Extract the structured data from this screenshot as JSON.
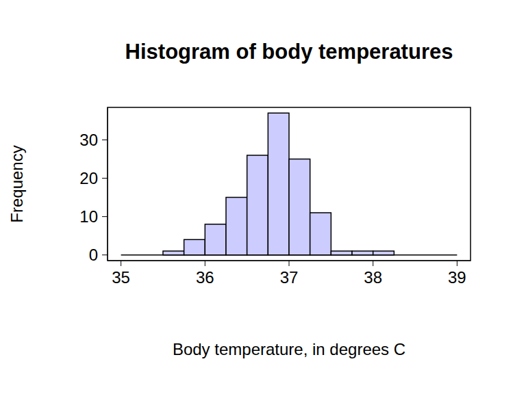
{
  "chart_data": {
    "type": "histogram",
    "title": "Histogram of body temperatures",
    "x_label": "Body temperature, in degrees C",
    "y_label": "Frequency",
    "bins": [
      35,
      35.25,
      35.5,
      35.75,
      36,
      36.25,
      36.5,
      36.75,
      37,
      37.25,
      37.5,
      37.75,
      38,
      38.25,
      38.5,
      38.75,
      39
    ],
    "values": [
      0,
      0,
      1,
      4,
      8,
      15,
      26,
      37,
      25,
      11,
      1,
      1,
      1,
      0,
      0,
      0
    ],
    "color": "#ccccff",
    "xlim": [
      34.84,
      39.16
    ],
    "xticks": [
      35,
      36,
      37,
      38,
      39
    ],
    "ylim": [
      -1.48,
      38.48
    ],
    "yticks": [
      0,
      10,
      20,
      30
    ],
    "grid": false
  }
}
